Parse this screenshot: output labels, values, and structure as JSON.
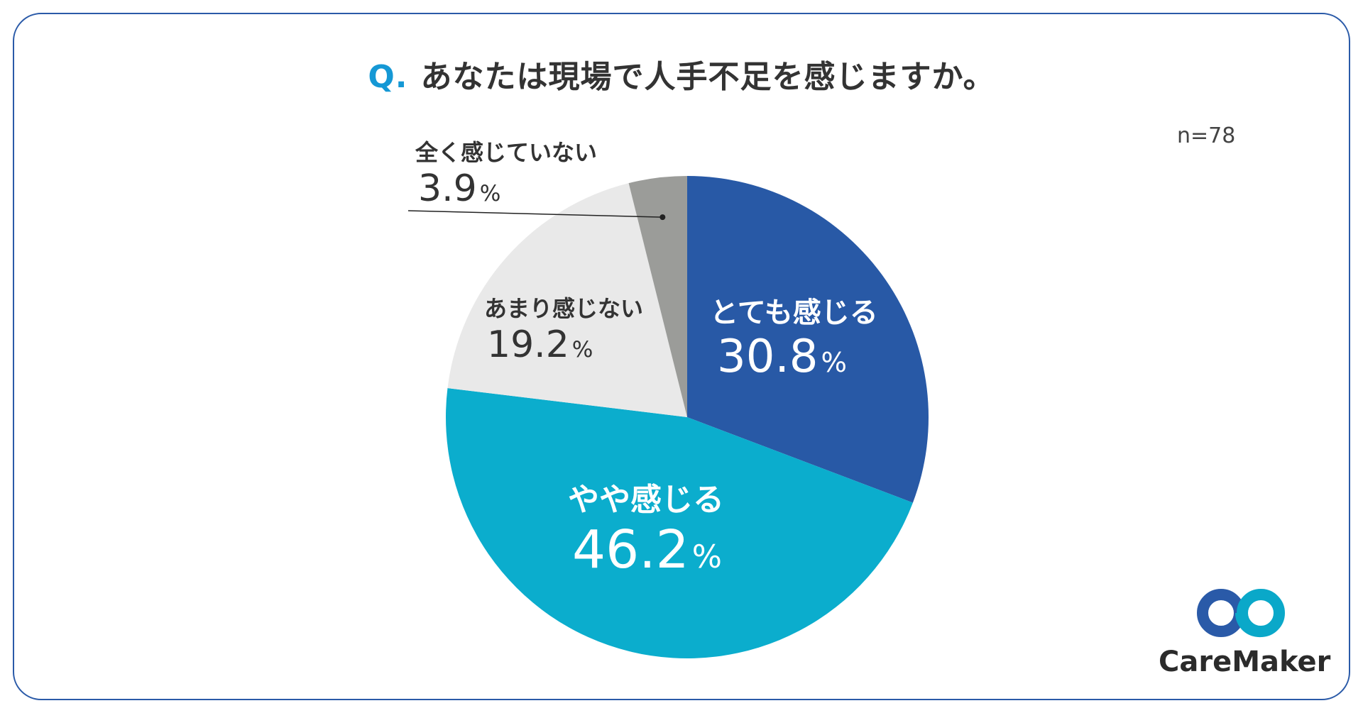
{
  "question": {
    "prefix": "Q.",
    "text": "あなたは現場で人手不足を感じますか。"
  },
  "sample_size": "n=78",
  "brand": {
    "name": "CareMaker",
    "colors": {
      "primary": "#2a5aa8",
      "secondary": "#0aa8c9"
    }
  },
  "chart_data": {
    "type": "pie",
    "title": "あなたは現場で人手不足を感じますか。",
    "categories": [
      "とても感じる",
      "やや感じる",
      "あまり感じない",
      "全く感じていない"
    ],
    "values": [
      30.8,
      46.2,
      19.2,
      3.9
    ],
    "value_labels": [
      "30.8",
      "46.2",
      "19.2",
      "3.9"
    ],
    "unit": "%",
    "colors": [
      "#2859a6",
      "#0badcd",
      "#e9e9e9",
      "#9b9c99"
    ],
    "label_colors": [
      "#ffffff",
      "#ffffff",
      "#333333",
      "#333333"
    ]
  }
}
